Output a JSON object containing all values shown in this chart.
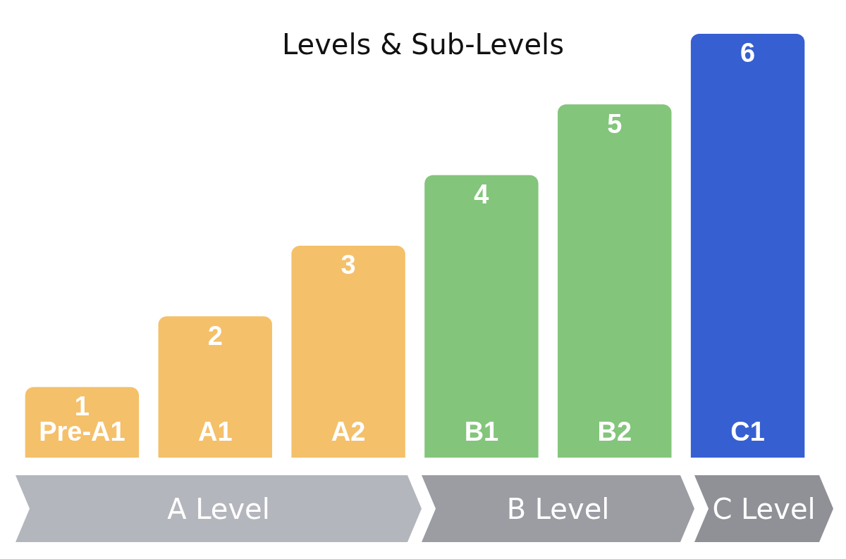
{
  "chart_data": {
    "type": "bar",
    "title": "Levels & Sub-Levels",
    "categories": [
      "Pre-A1",
      "A1",
      "A2",
      "B1",
      "B2",
      "C1"
    ],
    "values": [
      1,
      2,
      3,
      4,
      5,
      6
    ],
    "colors": [
      "#f4c06a",
      "#f4c06a",
      "#f4c06a",
      "#83c57b",
      "#83c57b",
      "#365fd1"
    ],
    "data_labels": true,
    "annotations": [
      "A Level",
      "B Level",
      "C Level"
    ]
  }
}
